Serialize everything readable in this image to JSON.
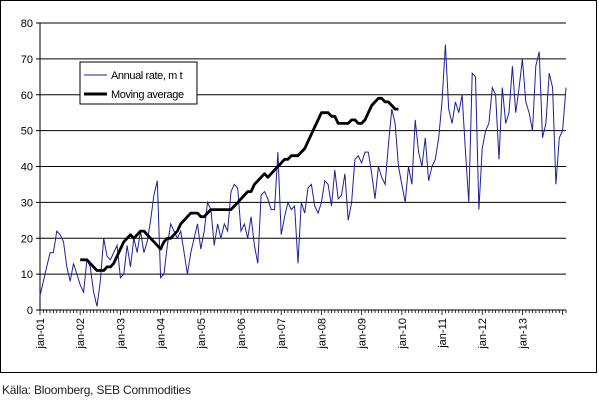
{
  "footer": {
    "source": "Källa: Bloomberg, SEB Commodities"
  },
  "colors": {
    "annual": "#1f1f9a",
    "moving": "#000000",
    "grid": "#000000"
  },
  "chart_data": {
    "type": "line",
    "title": "",
    "xlabel": "",
    "ylabel": "",
    "ylim": [
      0,
      80
    ],
    "yticks": [
      0,
      10,
      20,
      30,
      40,
      50,
      60,
      70,
      80
    ],
    "x_start_month": "2001-01",
    "x_tick_labels": [
      "jan-01",
      "jan-02",
      "jan-03",
      "jan-04",
      "jan-05",
      "jan-06",
      "jan-07",
      "jan-08",
      "jan-09",
      "jan-10",
      "jan-11",
      "jan-12",
      "jan-13"
    ],
    "grid": true,
    "legend_position": "top-left",
    "series": [
      {
        "name": "Annual rate, m t",
        "style": "thin",
        "values": [
          4,
          8,
          12,
          16,
          16,
          22,
          21,
          19,
          12,
          8,
          13,
          10,
          7,
          5,
          14,
          12,
          5,
          1,
          8,
          20,
          15,
          14,
          16,
          18,
          9,
          10,
          18,
          12,
          20,
          16,
          22,
          16,
          19,
          25,
          32,
          36,
          9,
          10,
          18,
          24,
          22,
          20,
          22,
          16,
          10,
          16,
          20,
          24,
          17,
          22,
          30,
          28,
          18,
          24,
          20,
          24,
          22,
          33,
          35,
          34,
          22,
          24,
          20,
          26,
          18,
          13,
          32,
          33,
          31,
          28,
          28,
          44,
          21,
          26,
          30,
          28,
          29,
          13,
          30,
          27,
          34,
          35,
          29,
          27,
          30,
          36,
          35,
          29,
          39,
          31,
          32,
          38,
          25,
          30,
          42,
          43,
          41,
          44,
          44,
          38,
          31,
          40,
          37,
          35,
          46,
          56,
          52,
          40,
          35,
          30,
          40,
          35,
          53,
          44,
          40,
          48,
          36,
          40,
          42,
          48,
          58,
          74,
          56,
          52,
          58,
          55,
          60,
          44,
          30,
          66,
          65,
          28,
          45,
          50,
          52,
          62,
          60,
          42,
          62,
          52,
          55,
          68,
          55,
          62,
          70,
          58,
          55,
          50,
          68,
          72,
          48,
          52,
          66,
          62,
          35,
          48,
          50,
          62
        ],
        "note": "monthly values read off the chart, jan-01 onward"
      },
      {
        "name": "Moving average",
        "style": "thick",
        "start_month": "2002-01",
        "values": [
          14,
          14,
          14,
          13,
          12,
          11,
          11,
          11,
          12,
          12,
          13,
          15,
          17,
          19,
          20,
          21,
          20,
          21,
          22,
          22,
          21,
          20,
          19,
          18,
          17,
          19,
          20,
          20,
          21,
          22,
          24,
          25,
          26,
          27,
          27,
          27,
          26,
          26,
          27,
          28,
          28,
          28,
          28,
          28,
          28,
          28,
          29,
          30,
          31,
          32,
          33,
          33,
          35,
          36,
          37,
          38,
          37,
          38,
          39,
          40,
          41,
          42,
          42,
          43,
          43,
          43,
          44,
          45,
          47,
          49,
          51,
          53,
          55,
          55,
          55,
          54,
          54,
          52,
          52,
          52,
          52,
          53,
          53,
          52,
          52,
          53,
          55,
          57,
          58,
          59,
          59,
          58,
          58,
          57,
          56,
          56
        ]
      }
    ]
  }
}
